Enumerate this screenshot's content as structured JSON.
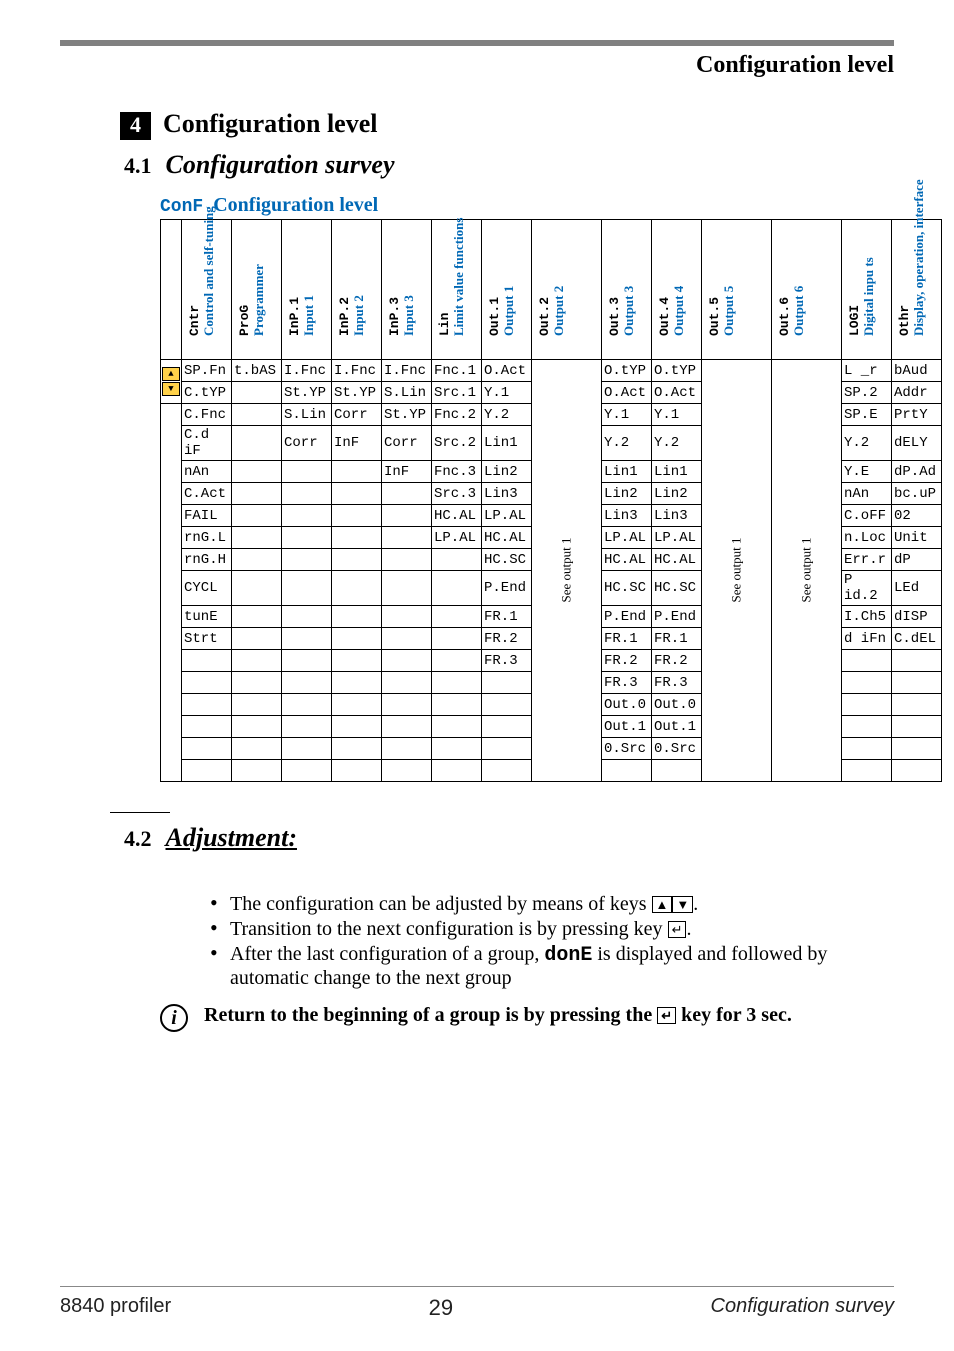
{
  "header": {
    "title": "Configuration level"
  },
  "section": {
    "num": "4",
    "title": "Configuration level",
    "sub1_num": "4.1",
    "sub1_title": "Configuration survey",
    "sub2_num": "4.2",
    "sub2_title": "Adjustment:"
  },
  "conf": {
    "code": "ConF",
    "label": "Configuration level",
    "headers": [
      {
        "seg": "Cntr",
        "lab": "Control and self-tuning"
      },
      {
        "seg": "ProG",
        "lab": "Programmer"
      },
      {
        "seg": "InP.1",
        "lab": "Input 1"
      },
      {
        "seg": "InP.2",
        "lab": "Input 2"
      },
      {
        "seg": "InP.3",
        "lab": "Input 3"
      },
      {
        "seg": "Lin",
        "lab": "Limit value functions"
      },
      {
        "seg": "Out.1",
        "lab": "Output 1"
      },
      {
        "seg": "Out.2",
        "lab": "Output 2"
      },
      {
        "seg": "Out.3",
        "lab": "Output 3"
      },
      {
        "seg": "Out.4",
        "lab": "Output 4"
      },
      {
        "seg": "Out.5",
        "lab": "Output 5"
      },
      {
        "seg": "Out.6",
        "lab": "Output 6"
      },
      {
        "seg": "LOGI",
        "lab": "Digital inpu ts"
      },
      {
        "seg": "Othr",
        "lab": "Display, operation, interface"
      }
    ],
    "rows": [
      [
        "SP.Fn",
        "t.bAS",
        "I.Fnc",
        "I.Fnc",
        "I.Fnc",
        "Fnc.1",
        "O.Act",
        "",
        "O.tYP",
        "O.tYP",
        "",
        "",
        "L _r",
        "bAud"
      ],
      [
        "C.tYP",
        "",
        "St.YP",
        "St.YP",
        "S.Lin",
        "Src.1",
        "Y.1",
        "",
        "O.Act",
        "O.Act",
        "",
        "",
        "SP.2",
        "Addr"
      ],
      [
        "C.Fnc",
        "",
        "S.Lin",
        "Corr",
        "St.YP",
        "Fnc.2",
        "Y.2",
        "",
        "Y.1",
        "Y.1",
        "",
        "",
        "SP.E",
        "PrtY"
      ],
      [
        "C.d iF",
        "",
        "Corr",
        "InF",
        "Corr",
        "Src.2",
        "Lin1",
        "",
        "Y.2",
        "Y.2",
        "",
        "",
        "Y.2",
        "dELY"
      ],
      [
        "nAn",
        "",
        "",
        "",
        "InF",
        "Fnc.3",
        "Lin2",
        "",
        "Lin1",
        "Lin1",
        "",
        "",
        "Y.E",
        "dP.Ad"
      ],
      [
        "C.Act",
        "",
        "",
        "",
        "",
        "Src.3",
        "Lin3",
        "",
        "Lin2",
        "Lin2",
        "",
        "",
        "nAn",
        "bc.uP"
      ],
      [
        "FAIL",
        "",
        "",
        "",
        "",
        "HC.AL",
        "LP.AL",
        "",
        "Lin3",
        "Lin3",
        "",
        "",
        "C.oFF",
        "02"
      ],
      [
        "rnG.L",
        "",
        "",
        "",
        "",
        "LP.AL",
        "HC.AL",
        "",
        "LP.AL",
        "LP.AL",
        "",
        "",
        "n.Loc",
        "Unit"
      ],
      [
        "rnG.H",
        "",
        "",
        "",
        "",
        "",
        "HC.SC",
        "",
        "HC.AL",
        "HC.AL",
        "",
        "",
        "Err.r",
        "dP"
      ],
      [
        "CYCL",
        "",
        "",
        "",
        "",
        "",
        "P.End",
        "",
        "HC.SC",
        "HC.SC",
        "",
        "",
        "P id.2",
        "LEd"
      ],
      [
        "tunE",
        "",
        "",
        "",
        "",
        "",
        "FR.1",
        "",
        "P.End",
        "P.End",
        "",
        "",
        "I.Ch5",
        "dISP"
      ],
      [
        "Strt",
        "",
        "",
        "",
        "",
        "",
        "FR.2",
        "",
        "FR.1",
        "FR.1",
        "",
        "",
        "d iFn",
        "C.dEL"
      ],
      [
        "",
        "",
        "",
        "",
        "",
        "",
        "FR.3",
        "",
        "FR.2",
        "FR.2",
        "",
        "",
        "",
        ""
      ],
      [
        "",
        "",
        "",
        "",
        "",
        "",
        "",
        "",
        "FR.3",
        "FR.3",
        "",
        "",
        "",
        ""
      ],
      [
        "",
        "",
        "",
        "",
        "",
        "",
        "",
        "",
        "Out.0",
        "Out.0",
        "",
        "",
        "",
        ""
      ],
      [
        "",
        "",
        "",
        "",
        "",
        "",
        "",
        "",
        "Out.1",
        "Out.1",
        "",
        "",
        "",
        ""
      ],
      [
        "",
        "",
        "",
        "",
        "",
        "",
        "",
        "",
        "0.Src",
        "0.Src",
        "",
        "",
        "",
        ""
      ],
      [
        "",
        "",
        "",
        "",
        "",
        "",
        "",
        "",
        "",
        "",
        "",
        "",
        "",
        ""
      ]
    ],
    "see_output_label": "See output 1",
    "rowspan_vertical_cols": [
      7,
      10,
      11
    ]
  },
  "adjust": {
    "b1a": "The configuration can be adjusted by means of keys ",
    "b1b": ".",
    "b2a": "Transition to the next configuration is by pressing key ",
    "b2b": ".",
    "b3a": "After the last configuration of a group, ",
    "b3_seg": "donE",
    "b3b": " is displayed and followed by automatic change to the next group",
    "return_a": "Return to the beginning of a group is by  pressing the ",
    "return_b": " key for  3 sec."
  },
  "footer": {
    "left": "8840 profiler",
    "mid": "29",
    "right": "Configuration survey"
  }
}
